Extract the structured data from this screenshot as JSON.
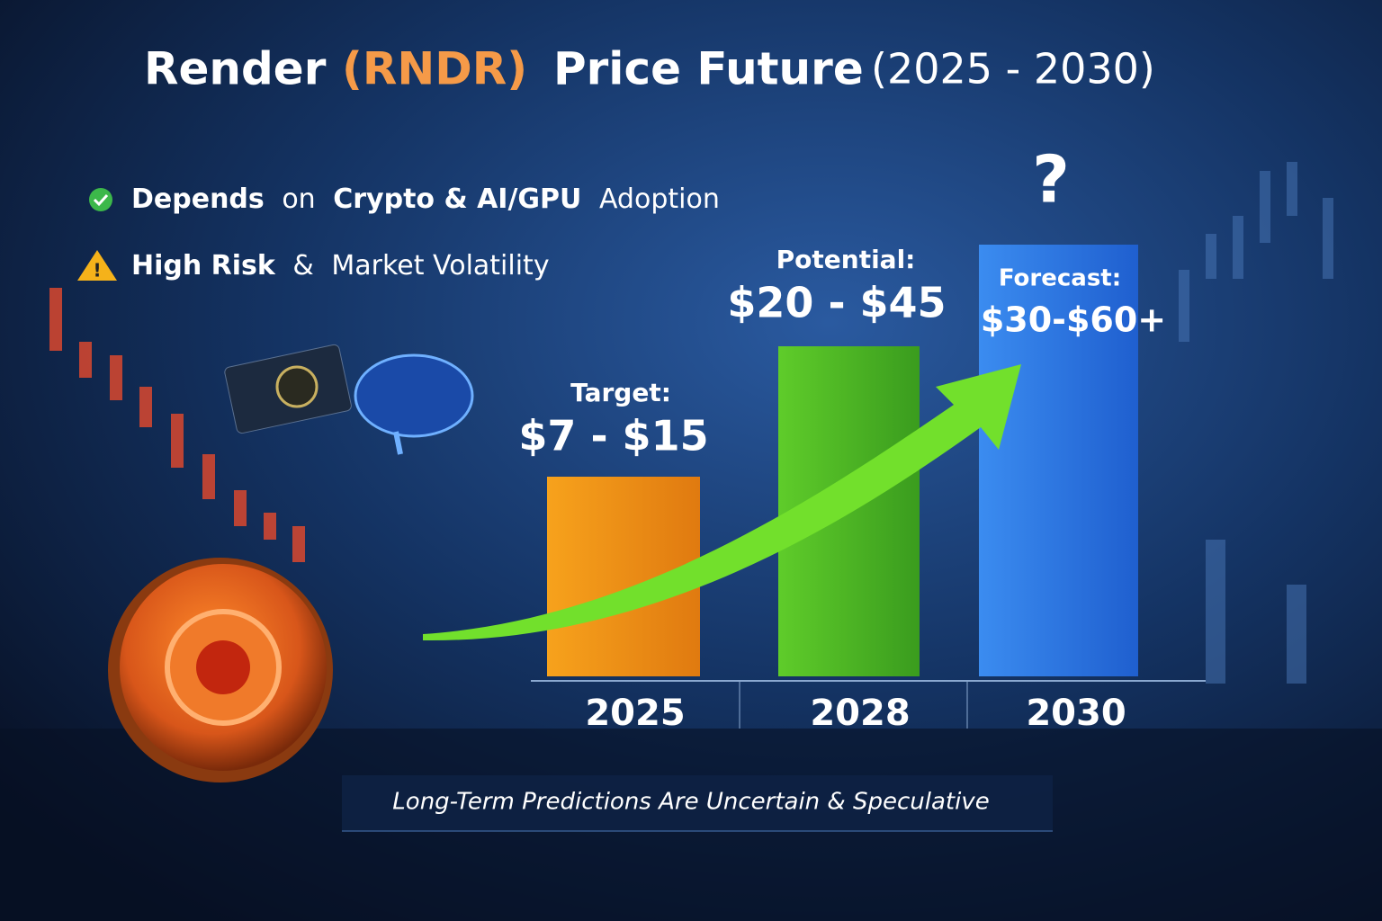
{
  "title": {
    "name": "Render",
    "ticker": "(RNDR)",
    "main": "Price Future",
    "range": "(2025 - 2030)"
  },
  "bullets": [
    {
      "segments": [
        "Depends",
        "on",
        "Crypto & AI/GPU",
        "Adoption"
      ]
    },
    {
      "segments": [
        "High Risk",
        "&",
        "Market Volatility"
      ]
    }
  ],
  "question_mark": "?",
  "bars": [
    {
      "label": "Target:",
      "range": "$7 - $15",
      "year": "2025"
    },
    {
      "label": "Potential:",
      "range": "$20 - $45",
      "year": "2028"
    },
    {
      "label": "Forecast:",
      "range": "$30-$60+",
      "year": "2030"
    }
  ],
  "footer": "Long-Term Predictions Are Uncertain & Speculative"
}
